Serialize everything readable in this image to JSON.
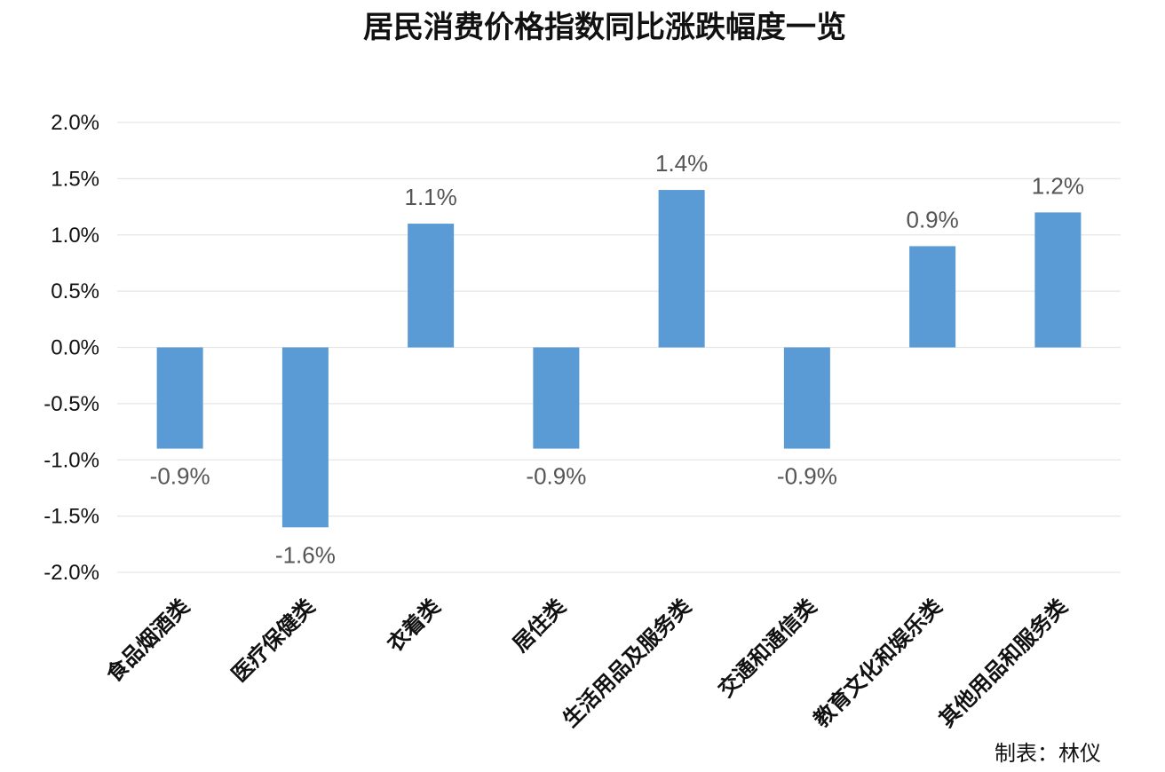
{
  "chart_data": {
    "type": "bar",
    "title": "居民消费价格指数同比涨跌幅度一览",
    "categories": [
      "食品烟酒类",
      "医疗保健类",
      "衣着类",
      "居住类",
      "生活用品及服务类",
      "交通和通信类",
      "教育文化和娱乐类",
      "其他用品和服务类"
    ],
    "values": [
      -0.9,
      -1.6,
      1.1,
      -0.9,
      1.4,
      -0.9,
      0.9,
      1.2
    ],
    "value_labels": [
      "-0.9%",
      "-1.6%",
      "1.1%",
      "-0.9%",
      "1.4%",
      "-0.9%",
      "0.9%",
      "1.2%"
    ],
    "yticks": [
      2.0,
      1.5,
      1.0,
      0.5,
      0.0,
      -0.5,
      -1.0,
      -1.5,
      -2.0
    ],
    "ytick_labels": [
      "2.0%",
      "1.5%",
      "1.0%",
      "0.5%",
      "0.0%",
      "-0.5%",
      "-1.0%",
      "-1.5%",
      "-2.0%"
    ],
    "ylim": [
      -2.0,
      2.0
    ],
    "xlabel": "",
    "ylabel": "",
    "grid": true,
    "bar_color": "#5b9bd5"
  },
  "credit": "制表：林仪"
}
